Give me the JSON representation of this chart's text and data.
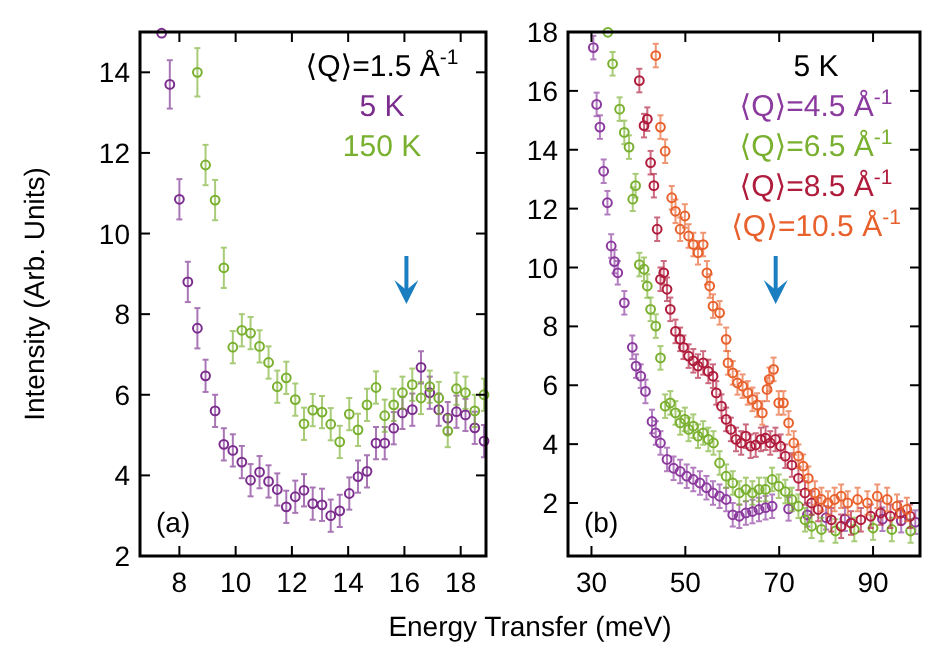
{
  "chart_data": [
    {
      "type": "scatter",
      "ylabel": "Intensity (Arb. Units)",
      "legend_title": "⟨Q⟩=1.5 Å$^{-1}$",
      "legend": "top right",
      "marker": "circle",
      "annotations": [
        "(a)"
      ],
      "xlim": [
        6.6,
        18.9
      ],
      "ylim": [
        2,
        15
      ],
      "xticks": [
        8,
        10,
        12,
        14,
        16,
        18
      ],
      "yticks": [
        2,
        4,
        6,
        8,
        10,
        12,
        14
      ],
      "series": [
        {
          "name": "5 K",
          "color": "#7b2d8e",
          "x": [
            7.37,
            7.66,
            8.0,
            8.3,
            8.64,
            8.93,
            9.27,
            9.58,
            9.9,
            10.22,
            10.53,
            10.85,
            11.17,
            11.48,
            11.8,
            12.12,
            12.43,
            12.74,
            13.07,
            13.38,
            13.7,
            14.04,
            14.35,
            14.67,
            14.99,
            15.3,
            15.62,
            15.93,
            16.28,
            16.59,
            16.9,
            17.22,
            17.54,
            17.85,
            18.17,
            18.5,
            18.83
          ],
          "values": [
            14.97,
            13.7,
            10.85,
            8.8,
            7.65,
            6.47,
            5.6,
            4.77,
            4.62,
            4.33,
            3.88,
            4.08,
            3.85,
            3.65,
            3.22,
            3.47,
            3.63,
            3.3,
            3.27,
            3.0,
            3.12,
            3.55,
            3.97,
            4.1,
            4.8,
            4.8,
            5.17,
            5.55,
            5.63,
            6.68,
            6.05,
            5.63,
            5.42,
            5.58,
            5.5,
            5.18,
            4.85
          ],
          "errors": [
            null,
            0.6,
            0.5,
            0.5,
            0.5,
            0.4,
            0.4,
            0.4,
            0.4,
            0.4,
            0.4,
            0.4,
            0.4,
            0.4,
            0.4,
            0.4,
            0.4,
            0.4,
            0.4,
            0.4,
            0.4,
            0.4,
            0.4,
            0.4,
            0.4,
            0.4,
            0.4,
            0.4,
            0.4,
            0.4,
            0.4,
            0.4,
            0.4,
            0.4,
            0.4,
            0.4,
            0.4
          ]
        },
        {
          "name": "150 K",
          "color": "#7ab030",
          "x": [
            8.64,
            8.93,
            9.27,
            9.58,
            9.9,
            10.22,
            10.53,
            10.85,
            11.17,
            11.48,
            11.8,
            12.12,
            12.43,
            12.74,
            13.07,
            13.38,
            13.7,
            14.04,
            14.35,
            14.67,
            14.99,
            15.3,
            15.62,
            15.93,
            16.28,
            16.59,
            16.9,
            17.22,
            17.54,
            17.85,
            18.17,
            18.5,
            18.83
          ],
          "values": [
            14.0,
            11.7,
            10.83,
            9.15,
            7.18,
            7.6,
            7.53,
            7.2,
            6.8,
            6.2,
            6.42,
            5.88,
            5.28,
            5.62,
            5.57,
            5.27,
            4.83,
            5.52,
            5.13,
            5.75,
            6.18,
            5.48,
            5.75,
            6.05,
            6.25,
            5.92,
            6.2,
            5.92,
            5.1,
            6.15,
            6.05,
            5.6,
            6.0
          ],
          "errors": [
            0.6,
            0.5,
            0.5,
            0.5,
            0.4,
            0.4,
            0.4,
            0.4,
            0.4,
            0.4,
            0.4,
            0.4,
            0.4,
            0.4,
            0.4,
            0.4,
            0.4,
            0.4,
            0.4,
            0.4,
            0.4,
            0.4,
            0.4,
            0.4,
            0.4,
            0.4,
            0.4,
            0.4,
            0.4,
            0.4,
            0.4,
            0.4,
            0.4
          ]
        }
      ]
    },
    {
      "type": "scatter",
      "xlabel": "Energy Transfer (meV)",
      "legend_title": "5 K",
      "legend": "top right",
      "marker": "circle",
      "annotations": [
        "(b)"
      ],
      "xlim": [
        25,
        100
      ],
      "ylim": [
        0.2,
        18
      ],
      "xticks": [
        30,
        50,
        70,
        90
      ],
      "yticks": [
        2,
        4,
        6,
        8,
        10,
        12,
        14,
        16,
        18
      ],
      "series": [
        {
          "name": "⟨Q⟩=4.5 Å$^{-1}$",
          "color": "#8b3a9e",
          "x": [
            30.4,
            31.1,
            31.8,
            32.6,
            33.4,
            34.2,
            34.9,
            35.6,
            37.0,
            38.7,
            39.5,
            40.5,
            41.5,
            42.9,
            43.7,
            44.7,
            46.1,
            47.5,
            48.9,
            50.3,
            51.7,
            53.1,
            54.5,
            55.9,
            57.3,
            58.7,
            60.1,
            61.5,
            62.9,
            64.3,
            65.7,
            67.1,
            68.5,
            72,
            76,
            80,
            84,
            92,
            96,
            99
          ],
          "values": [
            17.47,
            15.54,
            14.77,
            13.27,
            12.2,
            10.73,
            10.2,
            9.82,
            8.8,
            7.29,
            6.65,
            6.31,
            5.79,
            4.77,
            4.38,
            4.04,
            3.48,
            3.18,
            3.07,
            2.91,
            2.8,
            2.68,
            2.52,
            2.34,
            2.23,
            2.12,
            1.6,
            1.55,
            1.66,
            1.71,
            1.78,
            1.84,
            1.89,
            1.8,
            1.6,
            1.5,
            1.45,
            1.45,
            1.4,
            1.35
          ],
          "errors": [
            0.4,
            0.4,
            0.4,
            0.4,
            0.4,
            0.4,
            0.4,
            0.4,
            0.4,
            0.4,
            0.4,
            0.4,
            0.4,
            0.4,
            0.4,
            0.4,
            0.4,
            0.4,
            0.4,
            0.4,
            0.4,
            0.4,
            0.4,
            0.4,
            0.4,
            0.4,
            0.4,
            0.4,
            0.4,
            0.4,
            0.4,
            0.4,
            0.4,
            0.4,
            0.4,
            0.4,
            0.4,
            0.4,
            0.4,
            0.4
          ]
        },
        {
          "name": "⟨Q⟩=6.5 Å$^{-1}$",
          "color": "#7ab030",
          "x": [
            33.5,
            34.5,
            36.0,
            37.0,
            38.0,
            38.8,
            39.4,
            40.2,
            41.2,
            41.9,
            42.6,
            43.7,
            44.7,
            45.7,
            46.8,
            47.9,
            48.9,
            49.9,
            50.7,
            51.7,
            52.7,
            53.8,
            54.9,
            56.0,
            57.3,
            58.7,
            60.1,
            61.5,
            62.9,
            64.3,
            65.7,
            67.1,
            68.5,
            69.9,
            71.3,
            72.7,
            74.1,
            75.5,
            76.9,
            79.0,
            82,
            86,
            90,
            94,
            98
          ],
          "values": [
            17.99,
            16.92,
            15.38,
            14.59,
            14.09,
            12.32,
            12.78,
            10.1,
            9.94,
            9.37,
            8.58,
            8.01,
            6.93,
            5.29,
            5.4,
            5.06,
            4.72,
            4.84,
            4.5,
            4.61,
            4.27,
            4.38,
            4.16,
            4.04,
            3.36,
            2.91,
            2.68,
            2.34,
            2.46,
            2.34,
            2.46,
            2.46,
            2.8,
            2.57,
            2.39,
            2.12,
            1.89,
            1.43,
            1.21,
            1.1,
            1.05,
            1.1,
            1.15,
            1.1,
            1.05
          ],
          "errors": [
            null,
            0.4,
            0.4,
            0.4,
            0.4,
            0.4,
            0.4,
            0.4,
            0.4,
            0.4,
            0.4,
            0.4,
            0.4,
            0.4,
            0.4,
            0.4,
            0.4,
            0.4,
            0.4,
            0.4,
            0.4,
            0.4,
            0.4,
            0.4,
            0.4,
            0.4,
            0.4,
            0.4,
            0.4,
            0.4,
            0.4,
            0.4,
            0.4,
            0.4,
            0.4,
            0.4,
            0.4,
            0.4,
            0.4,
            0.4,
            0.4,
            0.4,
            0.4,
            0.4,
            0.4
          ]
        },
        {
          "name": "⟨Q⟩=8.5 Å$^{-1}$",
          "color": "#b01c3c",
          "x": [
            40.2,
            41.2,
            41.9,
            42.6,
            43.3,
            44.0,
            44.7,
            45.4,
            46.1,
            46.8,
            47.9,
            48.9,
            49.6,
            50.7,
            51.7,
            52.7,
            53.8,
            54.9,
            55.9,
            56.6,
            57.7,
            58.7,
            59.7,
            60.8,
            61.9,
            62.9,
            63.9,
            65.0,
            66.1,
            67.1,
            68.1,
            69.2,
            70.3,
            71.3,
            72.7,
            74.1,
            75.5,
            76.9,
            78.3,
            81.1,
            83.2,
            85.3,
            87.4,
            89.5,
            91.6,
            93.7,
            95.8,
            97.9
          ],
          "values": [
            16.35,
            14.82,
            15.04,
            13.56,
            12.78,
            11.3,
            9.6,
            9.82,
            9.26,
            8.58,
            7.83,
            7.56,
            7.29,
            6.99,
            6.83,
            6.65,
            6.76,
            6.47,
            6.31,
            5.74,
            5.29,
            4.84,
            4.5,
            4.16,
            4.04,
            4.27,
            3.93,
            3.97,
            4.16,
            4.2,
            4.04,
            4.16,
            3.93,
            3.59,
            3.29,
            2.84,
            2.34,
            2.0,
            1.78,
            1.43,
            1.21,
            1.32,
            1.43,
            1.55,
            1.66,
            1.55,
            1.66,
            1.55
          ],
          "errors": [
            0.4,
            0.4,
            0.4,
            0.4,
            0.4,
            0.4,
            0.4,
            0.4,
            0.4,
            0.4,
            0.4,
            0.4,
            0.4,
            0.4,
            0.4,
            0.4,
            0.4,
            0.4,
            0.4,
            0.4,
            0.4,
            0.4,
            0.4,
            0.4,
            0.4,
            0.4,
            0.4,
            0.4,
            0.4,
            0.4,
            0.4,
            0.4,
            0.4,
            0.4,
            0.4,
            0.4,
            0.4,
            0.4,
            0.4,
            0.4,
            0.4,
            0.4,
            0.4,
            0.4,
            0.4,
            0.4,
            0.4,
            0.4
          ]
        },
        {
          "name": "⟨Q⟩=10.5 Å$^{-1}$",
          "color": "#e8602c",
          "x": [
            43.7,
            44.7,
            45.7,
            47.1,
            47.9,
            48.9,
            49.9,
            50.7,
            51.7,
            52.7,
            53.8,
            54.6,
            55.2,
            55.9,
            57.3,
            58.7,
            59.1,
            60.1,
            61.1,
            62.2,
            63.3,
            64.3,
            65.3,
            66.4,
            67.4,
            67.9,
            68.8,
            69.9,
            70.9,
            72.0,
            73.1,
            74.1,
            75.1,
            76.2,
            77.6,
            79.0,
            80.4,
            81.8,
            83.2,
            84.6,
            86.7,
            88.8,
            90.9,
            93.0,
            95.1,
            97.2
          ],
          "values": [
            17.2,
            14.77,
            13.95,
            12.37,
            11.91,
            11.3,
            11.75,
            11.07,
            10.78,
            10.5,
            10.78,
            9.82,
            9.37,
            8.69,
            8.46,
            7.56,
            6.76,
            6.42,
            6.08,
            5.97,
            5.74,
            5.52,
            5.33,
            5.06,
            5.86,
            6.2,
            6.54,
            5.4,
            5.4,
            4.72,
            4.04,
            3.59,
            3.25,
            2.84,
            2.34,
            2.12,
            2.0,
            2.12,
            2.23,
            2.0,
            2.12,
            2.0,
            2.23,
            2.12,
            1.89,
            1.78
          ],
          "errors": [
            0.4,
            0.4,
            0.4,
            0.4,
            0.4,
            0.4,
            0.4,
            0.4,
            0.4,
            0.4,
            0.4,
            0.4,
            0.4,
            0.4,
            0.4,
            0.4,
            0.4,
            0.4,
            0.4,
            0.4,
            0.4,
            0.4,
            0.4,
            0.4,
            0.4,
            0.4,
            0.4,
            0.4,
            0.4,
            0.4,
            0.4,
            0.4,
            0.4,
            0.4,
            0.4,
            0.4,
            0.4,
            0.4,
            0.4,
            0.4,
            0.4,
            0.4,
            0.4,
            0.4,
            0.4,
            0.4
          ]
        }
      ]
    }
  ]
}
